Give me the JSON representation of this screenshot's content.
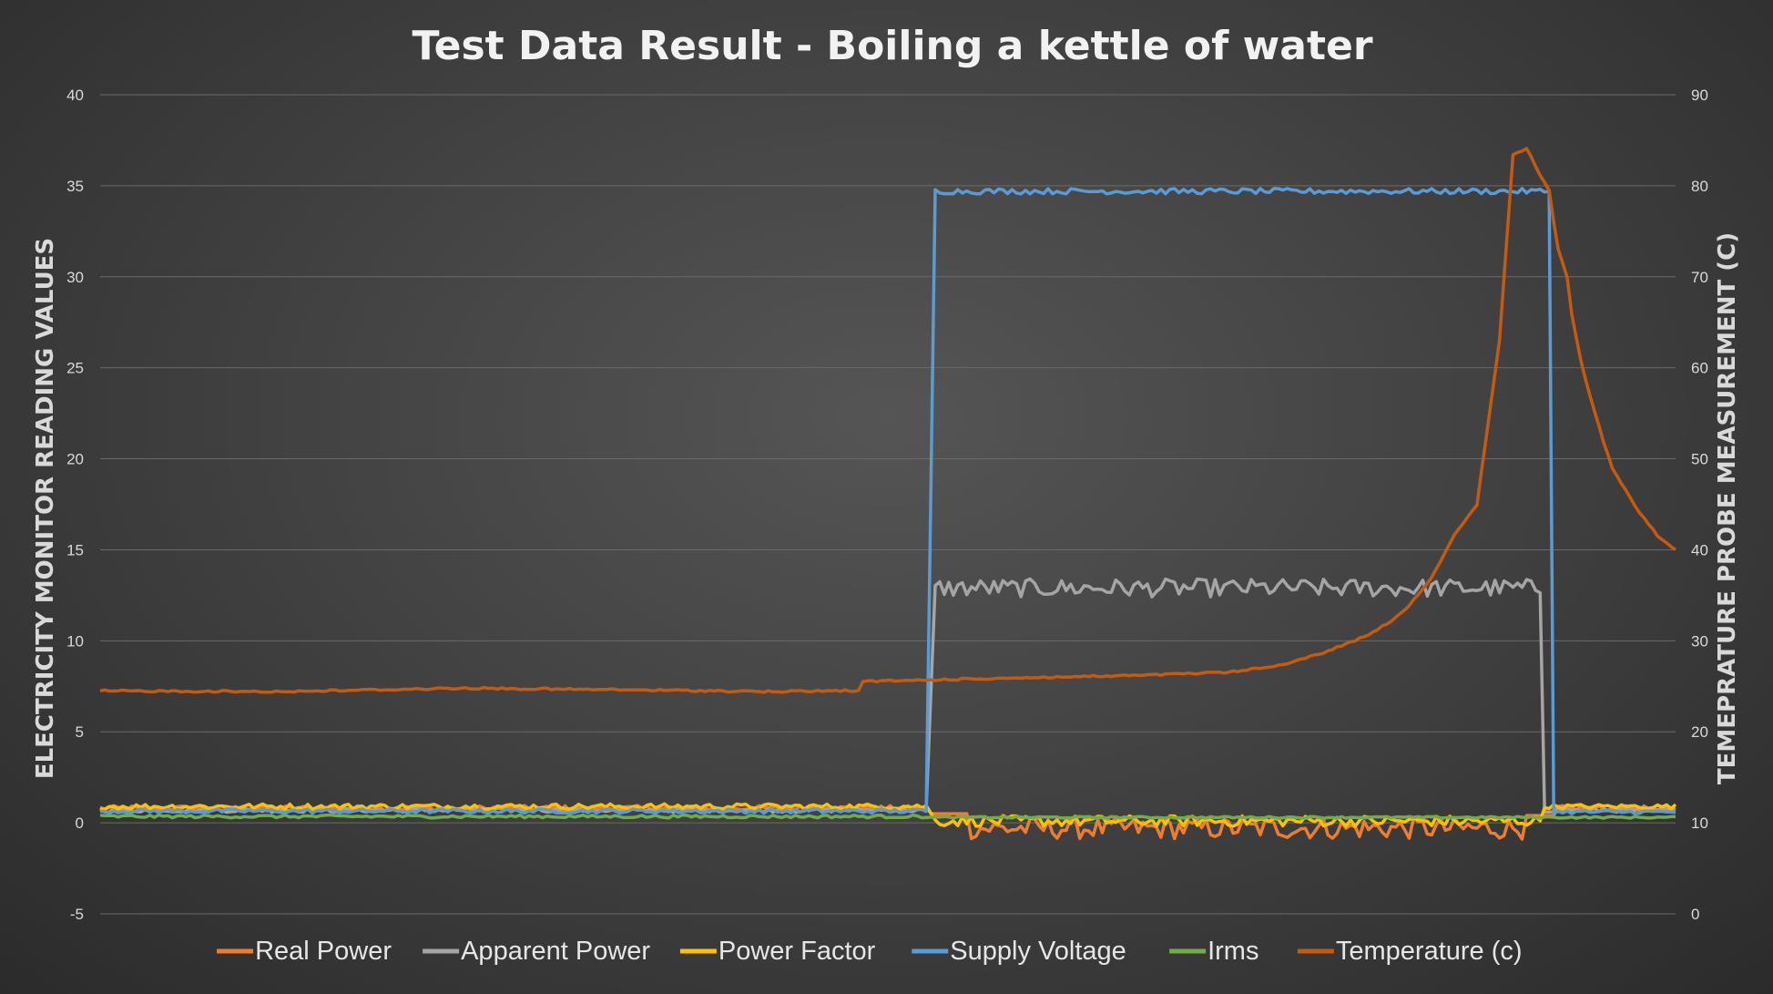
{
  "chart_data": {
    "type": "line",
    "title": "Test Data Result - Boiling a kettle of water",
    "ylabel": "ELECTRICITY MONITOR READING VALUES",
    "y2label": "TEMEPRATURE PROBE MEASUREMENT (C)",
    "ylim": [
      -5,
      40
    ],
    "y2lim": [
      0,
      90
    ],
    "yticks": [
      -5,
      0,
      5,
      10,
      15,
      20,
      25,
      30,
      35,
      40
    ],
    "y2ticks": [
      0,
      10,
      20,
      30,
      40,
      50,
      60,
      70,
      80,
      90
    ],
    "xlim": [
      0,
      349
    ],
    "grid": true,
    "legend": "bottom",
    "series": [
      {
        "name": "Real Power",
        "axis": "left",
        "color": "#ED7D31",
        "style": "noisy",
        "segments": [
          [
            0,
            183,
            0.8
          ],
          [
            184,
            192,
            0.5
          ],
          [
            193,
            315,
            -0.3
          ],
          [
            316,
            322,
            0.4
          ],
          [
            323,
            349,
            0.8
          ]
        ],
        "amplitude": [
          [
            0,
            183,
            0.15
          ],
          [
            193,
            315,
            0.6
          ],
          [
            323,
            349,
            0.15
          ]
        ]
      },
      {
        "name": "Apparent Power",
        "axis": "left",
        "color": "#A5A5A5",
        "style": "noisy",
        "segments": [
          [
            0,
            183,
            0.7
          ],
          [
            185,
            319,
            12.9
          ],
          [
            320,
            349,
            0.7
          ]
        ],
        "amplitude": [
          [
            0,
            183,
            0.12
          ],
          [
            185,
            319,
            0.5
          ],
          [
            320,
            349,
            0.12
          ]
        ]
      },
      {
        "name": "Power Factor",
        "axis": "left",
        "color": "#FFC000",
        "style": "noisy",
        "segments": [
          [
            0,
            183,
            0.9
          ],
          [
            185,
            319,
            0.1
          ],
          [
            320,
            349,
            0.9
          ]
        ],
        "amplitude": [
          [
            0,
            183,
            0.15
          ],
          [
            185,
            319,
            0.3
          ],
          [
            320,
            349,
            0.12
          ]
        ]
      },
      {
        "name": "Supply Voltage",
        "axis": "left",
        "color": "#5B9BD5",
        "style": "noisy",
        "segments": [
          [
            0,
            183,
            0.65
          ],
          [
            185,
            321,
            34.7
          ],
          [
            322,
            349,
            0.6
          ]
        ],
        "amplitude": [
          [
            0,
            183,
            0.12
          ],
          [
            185,
            321,
            0.15
          ],
          [
            322,
            349,
            0.1
          ]
        ]
      },
      {
        "name": "Irms",
        "axis": "left",
        "color": "#70AD47",
        "style": "noisy",
        "segments": [
          [
            0,
            183,
            0.35
          ],
          [
            185,
            319,
            0.3
          ],
          [
            320,
            349,
            0.3
          ]
        ],
        "amplitude": [
          [
            0,
            183,
            0.08
          ],
          [
            185,
            319,
            0.05
          ],
          [
            320,
            349,
            0.05
          ]
        ]
      },
      {
        "name": "Temperature (c)",
        "axis": "right",
        "color": "#C55A11",
        "style": "points",
        "x": [
          0,
          40,
          80,
          120,
          150,
          168,
          169,
          200,
          230,
          250,
          260,
          270,
          280,
          285,
          290,
          295,
          300,
          305,
          310,
          313,
          316,
          319,
          321,
          322,
          323,
          325,
          326,
          328,
          330,
          333,
          335,
          340,
          345,
          349
        ],
        "y": [
          24.5,
          24.6,
          24.6,
          24.5,
          24.6,
          24.6,
          25.7,
          25.9,
          26.1,
          26.5,
          27.3,
          28.5,
          30.5,
          32.0,
          34.0,
          37.0,
          41.5,
          45.0,
          63.0,
          83.5,
          84.0,
          81.0,
          79.5,
          76.0,
          73.0,
          70.0,
          66.0,
          61.0,
          57.0,
          52.0,
          49.0,
          45.0,
          41.5,
          40.0
        ]
      }
    ]
  }
}
